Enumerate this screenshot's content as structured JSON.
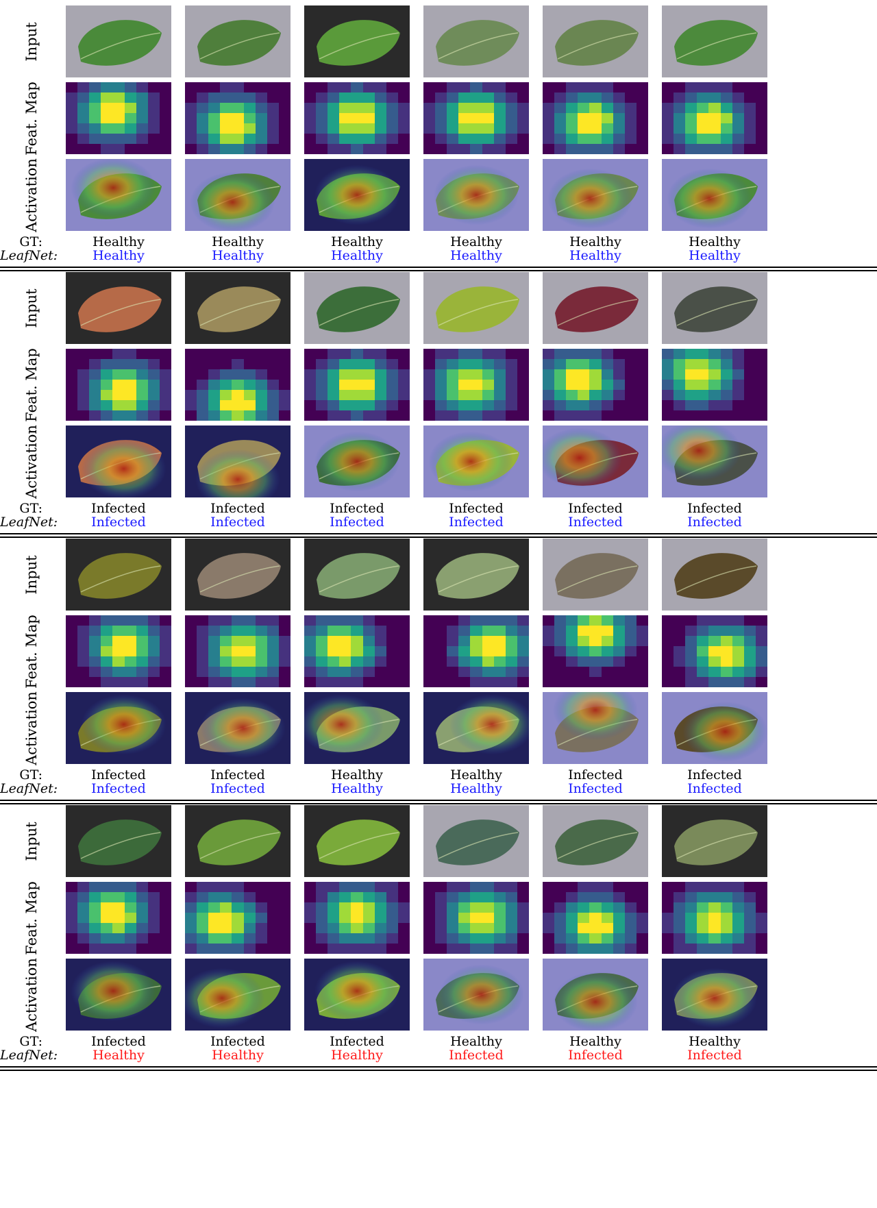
{
  "row_labels": {
    "input": "Input",
    "feat_map": "Feat. Map",
    "activation": "Activation"
  },
  "caption_labels": {
    "gt": "GT:",
    "model": "LeafNet:"
  },
  "colors": {
    "correct": "#1a1aff",
    "wrong": "#ff1a1a",
    "bg_dark": "#2a2a2a",
    "bg_gray": "#a8a6b0",
    "viridis_base": "#440154"
  },
  "blocks": [
    {
      "gt": [
        "Healthy",
        "Healthy",
        "Healthy",
        "Healthy",
        "Healthy",
        "Healthy"
      ],
      "pred": [
        "Healthy",
        "Healthy",
        "Healthy",
        "Healthy",
        "Healthy",
        "Healthy"
      ],
      "pred_color": [
        "correct",
        "correct",
        "correct",
        "correct",
        "correct",
        "correct"
      ],
      "bg": [
        "bg_gray",
        "bg_gray",
        "bg_dark",
        "bg_gray",
        "bg_gray",
        "bg_gray"
      ],
      "leaf": [
        "#4a8a3a",
        "#4f7f3c",
        "#5a9a3a",
        "#6f8c5a",
        "#6a8652",
        "#4c8a3c"
      ],
      "hot": [
        [
          0.45,
          0.4
        ],
        [
          0.45,
          0.6
        ],
        [
          0.5,
          0.5
        ],
        [
          0.5,
          0.5
        ],
        [
          0.45,
          0.55
        ],
        [
          0.45,
          0.55
        ]
      ]
    },
    {
      "gt": [
        "Infected",
        "Infected",
        "Infected",
        "Infected",
        "Infected",
        "Infected"
      ],
      "pred": [
        "Infected",
        "Infected",
        "Infected",
        "Infected",
        "Infected",
        "Infected"
      ],
      "pred_color": [
        "correct",
        "correct",
        "correct",
        "correct",
        "correct",
        "correct"
      ],
      "bg": [
        "bg_dark",
        "bg_dark",
        "bg_gray",
        "bg_gray",
        "bg_gray",
        "bg_gray"
      ],
      "leaf": [
        "#b66a48",
        "#9a8a5a",
        "#3c6e3a",
        "#9ab43a",
        "#7a2a3a",
        "#4a5048"
      ],
      "hot": [
        [
          0.55,
          0.6
        ],
        [
          0.5,
          0.75
        ],
        [
          0.5,
          0.5
        ],
        [
          0.45,
          0.5
        ],
        [
          0.35,
          0.45
        ],
        [
          0.35,
          0.35
        ]
      ]
    },
    {
      "gt": [
        "Infected",
        "Infected",
        "Healthy",
        "Healthy",
        "Infected",
        "Infected"
      ],
      "pred": [
        "Infected",
        "Infected",
        "Healthy",
        "Healthy",
        "Infected",
        "Infected"
      ],
      "pred_color": [
        "correct",
        "correct",
        "correct",
        "correct",
        "correct",
        "correct"
      ],
      "bg": [
        "bg_dark",
        "bg_dark",
        "bg_dark",
        "bg_dark",
        "bg_gray",
        "bg_gray"
      ],
      "leaf": [
        "#7a7a2a",
        "#8a7a6a",
        "#7a9a6a",
        "#8aa070",
        "#7a7060",
        "#5a4a2a"
      ],
      "hot": [
        [
          0.55,
          0.45
        ],
        [
          0.55,
          0.5
        ],
        [
          0.35,
          0.45
        ],
        [
          0.65,
          0.45
        ],
        [
          0.5,
          0.25
        ],
        [
          0.6,
          0.55
        ]
      ]
    },
    {
      "gt": [
        "Infected",
        "Infected",
        "Infected",
        "Healthy",
        "Healthy",
        "Healthy"
      ],
      "pred": [
        "Healthy",
        "Healthy",
        "Healthy",
        "Infected",
        "Infected",
        "Infected"
      ],
      "pred_color": [
        "wrong",
        "wrong",
        "wrong",
        "wrong",
        "wrong",
        "wrong"
      ],
      "bg": [
        "bg_dark",
        "bg_dark",
        "bg_dark",
        "bg_gray",
        "bg_gray",
        "bg_dark"
      ],
      "leaf": [
        "#3c6a3a",
        "#6a9a3a",
        "#7aaa3a",
        "#4a6a5a",
        "#4a6a4a",
        "#7a8a5a"
      ],
      "hot": [
        [
          0.45,
          0.45
        ],
        [
          0.35,
          0.55
        ],
        [
          0.5,
          0.45
        ],
        [
          0.55,
          0.5
        ],
        [
          0.5,
          0.6
        ],
        [
          0.5,
          0.55
        ]
      ]
    }
  ]
}
